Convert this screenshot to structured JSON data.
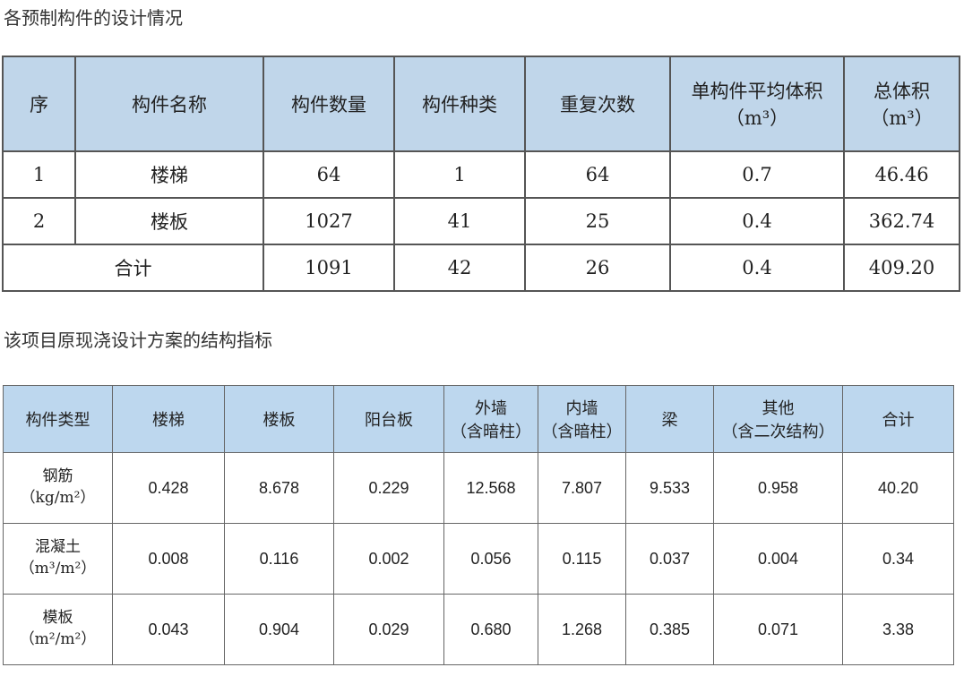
{
  "table1": {
    "title": "各预制构件的设计情况",
    "headers": [
      "序",
      "构件名称",
      "构件数量",
      "构件种类",
      "重复次数",
      "单构件平均体积",
      "总体积"
    ],
    "header_units": {
      "avg_volume": "（m³）",
      "total_volume": "（m³）"
    },
    "rows": [
      [
        "1",
        "楼梯",
        "64",
        "1",
        "64",
        "0.7",
        "46.46"
      ],
      [
        "2",
        "楼板",
        "1027",
        "41",
        "25",
        "0.4",
        "362.74"
      ]
    ],
    "total": [
      "合计",
      "1091",
      "42",
      "26",
      "0.4",
      "409.20"
    ]
  },
  "table2": {
    "title": "该项目原现浇设计方案的结构指标",
    "headers": [
      "构件类型",
      "楼梯",
      "楼板",
      "阳台板",
      "外墙",
      "内墙",
      "梁",
      "其他",
      "合计"
    ],
    "header_subs": {
      "outer_wall": "（含暗柱）",
      "inner_wall": "（含暗柱）",
      "other": "（含二次结构）"
    },
    "rows": [
      {
        "label": "钢筋",
        "unit": "（kg/m²）",
        "values": [
          "0.428",
          "8.678",
          "0.229",
          "12.568",
          "7.807",
          "9.533",
          "0.958",
          "40.20"
        ]
      },
      {
        "label": "混凝土",
        "unit": "（m³/m²）",
        "values": [
          "0.008",
          "0.116",
          "0.002",
          "0.056",
          "0.115",
          "0.037",
          "0.004",
          "0.34"
        ]
      },
      {
        "label": "模板",
        "unit": "（m²/m²）",
        "values": [
          "0.043",
          "0.904",
          "0.029",
          "0.680",
          "1.268",
          "0.385",
          "0.071",
          "3.38"
        ]
      }
    ]
  }
}
